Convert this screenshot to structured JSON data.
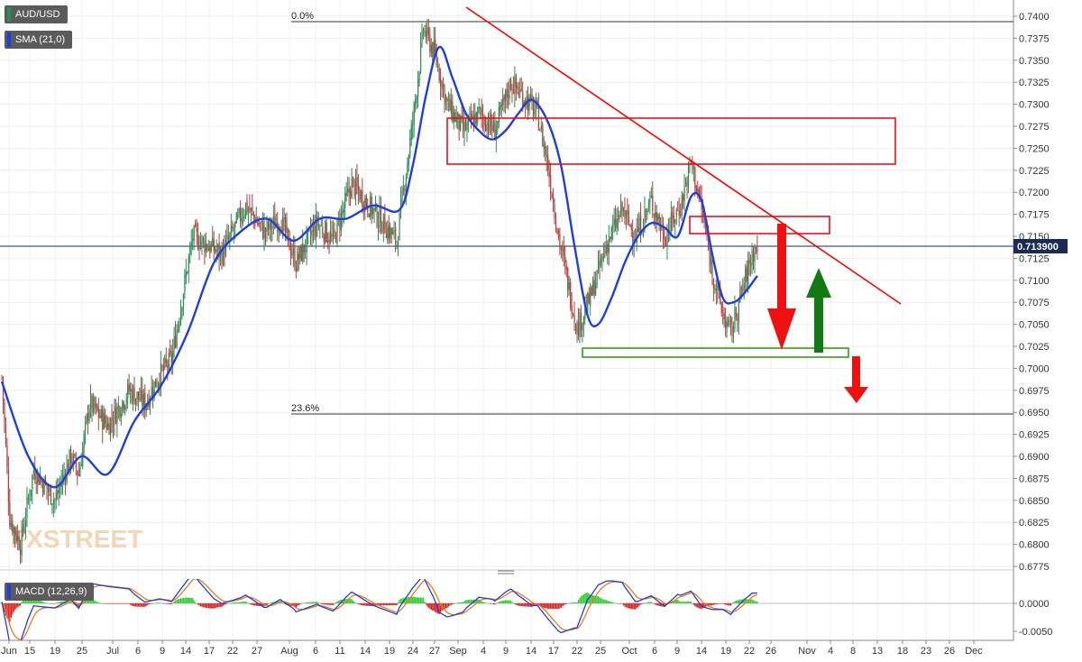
{
  "labels": {
    "symbol": "AUD/USD",
    "sma": "SMA (21,0)",
    "macd": "MACD (12,26,9)",
    "price_tag": "0.713900",
    "fib_0": "0.0%",
    "fib_236": "23.6%",
    "watermark": "FXSTREET"
  },
  "colors": {
    "candle_up": "#2e8b57",
    "candle_down": "#b0413e",
    "sma": "#1f3fd6",
    "trendline": "#ff0000",
    "zone_red": "#e0141e",
    "zone_green": "#3a9a1a",
    "arrow_red": "#ee1111",
    "arrow_green": "#137a13",
    "price_tag_bg": "#1b2b55",
    "macd_pos": "#33cc33",
    "macd_neg": "#dd2222",
    "macd_line": "#1f3fd6",
    "signal_line": "#f07a1a"
  },
  "chart_data": [
    {
      "type": "candlestick",
      "title": "AUD/USD",
      "indicator": "SMA (21,0)",
      "y_ticks": [
        "0.7400",
        "0.7375",
        "0.7350",
        "0.7325",
        "0.7300",
        "0.7275",
        "0.7250",
        "0.7225",
        "0.7200",
        "0.7175",
        "0.7150",
        "0.7125",
        "0.7100",
        "0.7075",
        "0.7050",
        "0.7025",
        "0.7000",
        "0.6975",
        "0.6950",
        "0.6925",
        "0.6900",
        "0.6875",
        "0.6850",
        "0.6825",
        "0.6800",
        "0.6775"
      ],
      "ylim": [
        0.677,
        0.7418
      ],
      "x_ticks": [
        "Jun",
        "15",
        "19",
        "25",
        "Jul",
        "6",
        "9",
        "14",
        "17",
        "22",
        "27",
        "Aug",
        "6",
        "11",
        "14",
        "19",
        "24",
        "27",
        "Sep",
        "4",
        "9",
        "14",
        "17",
        "22",
        "25",
        "Oct",
        "6",
        "9",
        "14",
        "19",
        "22",
        "26",
        "Nov",
        "4",
        "8",
        "13",
        "18",
        "23",
        "26",
        "Dec"
      ],
      "last_price": 0.7139,
      "fib_levels": [
        {
          "label": "0.0%",
          "value": 0.7394
        },
        {
          "label": "23.6%",
          "value": 0.695
        }
      ],
      "anchors": [
        [
          0,
          0.699
        ],
        [
          6,
          0.683
        ],
        [
          14,
          0.68
        ],
        [
          24,
          0.6885
        ],
        [
          40,
          0.685
        ],
        [
          52,
          0.69
        ],
        [
          58,
          0.688
        ],
        [
          66,
          0.696
        ],
        [
          80,
          0.6935
        ],
        [
          96,
          0.6975
        ],
        [
          108,
          0.696
        ],
        [
          118,
          0.699
        ],
        [
          128,
          0.701
        ],
        [
          144,
          0.715
        ],
        [
          166,
          0.713
        ],
        [
          184,
          0.7185
        ],
        [
          198,
          0.7155
        ],
        [
          210,
          0.717
        ],
        [
          222,
          0.712
        ],
        [
          238,
          0.7165
        ],
        [
          250,
          0.7145
        ],
        [
          264,
          0.721
        ],
        [
          282,
          0.7175
        ],
        [
          298,
          0.7145
        ],
        [
          310,
          0.728
        ],
        [
          318,
          0.7385
        ],
        [
          326,
          0.736
        ],
        [
          336,
          0.73
        ],
        [
          348,
          0.727
        ],
        [
          360,
          0.729
        ],
        [
          372,
          0.727
        ],
        [
          384,
          0.7325
        ],
        [
          396,
          0.7305
        ],
        [
          404,
          0.729
        ],
        [
          412,
          0.723
        ],
        [
          420,
          0.715
        ],
        [
          428,
          0.709
        ],
        [
          434,
          0.7045
        ],
        [
          444,
          0.708
        ],
        [
          456,
          0.714
        ],
        [
          468,
          0.718
        ],
        [
          478,
          0.715
        ],
        [
          490,
          0.719
        ],
        [
          500,
          0.715
        ],
        [
          512,
          0.7185
        ],
        [
          520,
          0.7235
        ],
        [
          528,
          0.718
        ],
        [
          536,
          0.711
        ],
        [
          544,
          0.706
        ],
        [
          550,
          0.704
        ],
        [
          558,
          0.7085
        ],
        [
          566,
          0.713
        ],
        [
          570,
          0.7139
        ]
      ],
      "sma_anchors": [
        [
          0,
          0.6985
        ],
        [
          20,
          0.69
        ],
        [
          40,
          0.6865
        ],
        [
          60,
          0.69
        ],
        [
          80,
          0.688
        ],
        [
          100,
          0.694
        ],
        [
          120,
          0.698
        ],
        [
          140,
          0.704
        ],
        [
          160,
          0.712
        ],
        [
          180,
          0.7155
        ],
        [
          200,
          0.717
        ],
        [
          220,
          0.7145
        ],
        [
          240,
          0.717
        ],
        [
          260,
          0.717
        ],
        [
          280,
          0.7185
        ],
        [
          300,
          0.718
        ],
        [
          310,
          0.723
        ],
        [
          320,
          0.731
        ],
        [
          330,
          0.7365
        ],
        [
          340,
          0.733
        ],
        [
          350,
          0.729
        ],
        [
          360,
          0.727
        ],
        [
          370,
          0.726
        ],
        [
          380,
          0.727
        ],
        [
          390,
          0.729
        ],
        [
          400,
          0.7305
        ],
        [
          412,
          0.728
        ],
        [
          422,
          0.723
        ],
        [
          432,
          0.714
        ],
        [
          442,
          0.706
        ],
        [
          450,
          0.705
        ],
        [
          460,
          0.708
        ],
        [
          470,
          0.712
        ],
        [
          480,
          0.715
        ],
        [
          490,
          0.7165
        ],
        [
          500,
          0.716
        ],
        [
          510,
          0.715
        ],
        [
          520,
          0.7195
        ],
        [
          528,
          0.719
        ],
        [
          536,
          0.713
        ],
        [
          544,
          0.708
        ],
        [
          552,
          0.7075
        ],
        [
          560,
          0.7085
        ],
        [
          570,
          0.7105
        ]
      ],
      "annotations": {
        "resistance_zone_major": [
          0.7234,
          0.7284
        ],
        "resistance_zone_minor": [
          0.7153,
          0.7173
        ],
        "support_zone": [
          0.7014,
          0.7024
        ],
        "trendline": [
          [
            330,
            0.7412
          ],
          [
            680,
            0.7076
          ]
        ],
        "arrows": [
          "down from 0.7160 to 0.7020",
          "up from 0.7022 to 0.7115",
          "down from 0.7015 to 0.6962"
        ]
      }
    },
    {
      "type": "macd",
      "title": "MACD (12,26,9)",
      "y_ticks": [
        "0.0000",
        "-0.0050"
      ],
      "ylim": [
        -0.0057,
        0.005
      ]
    }
  ]
}
